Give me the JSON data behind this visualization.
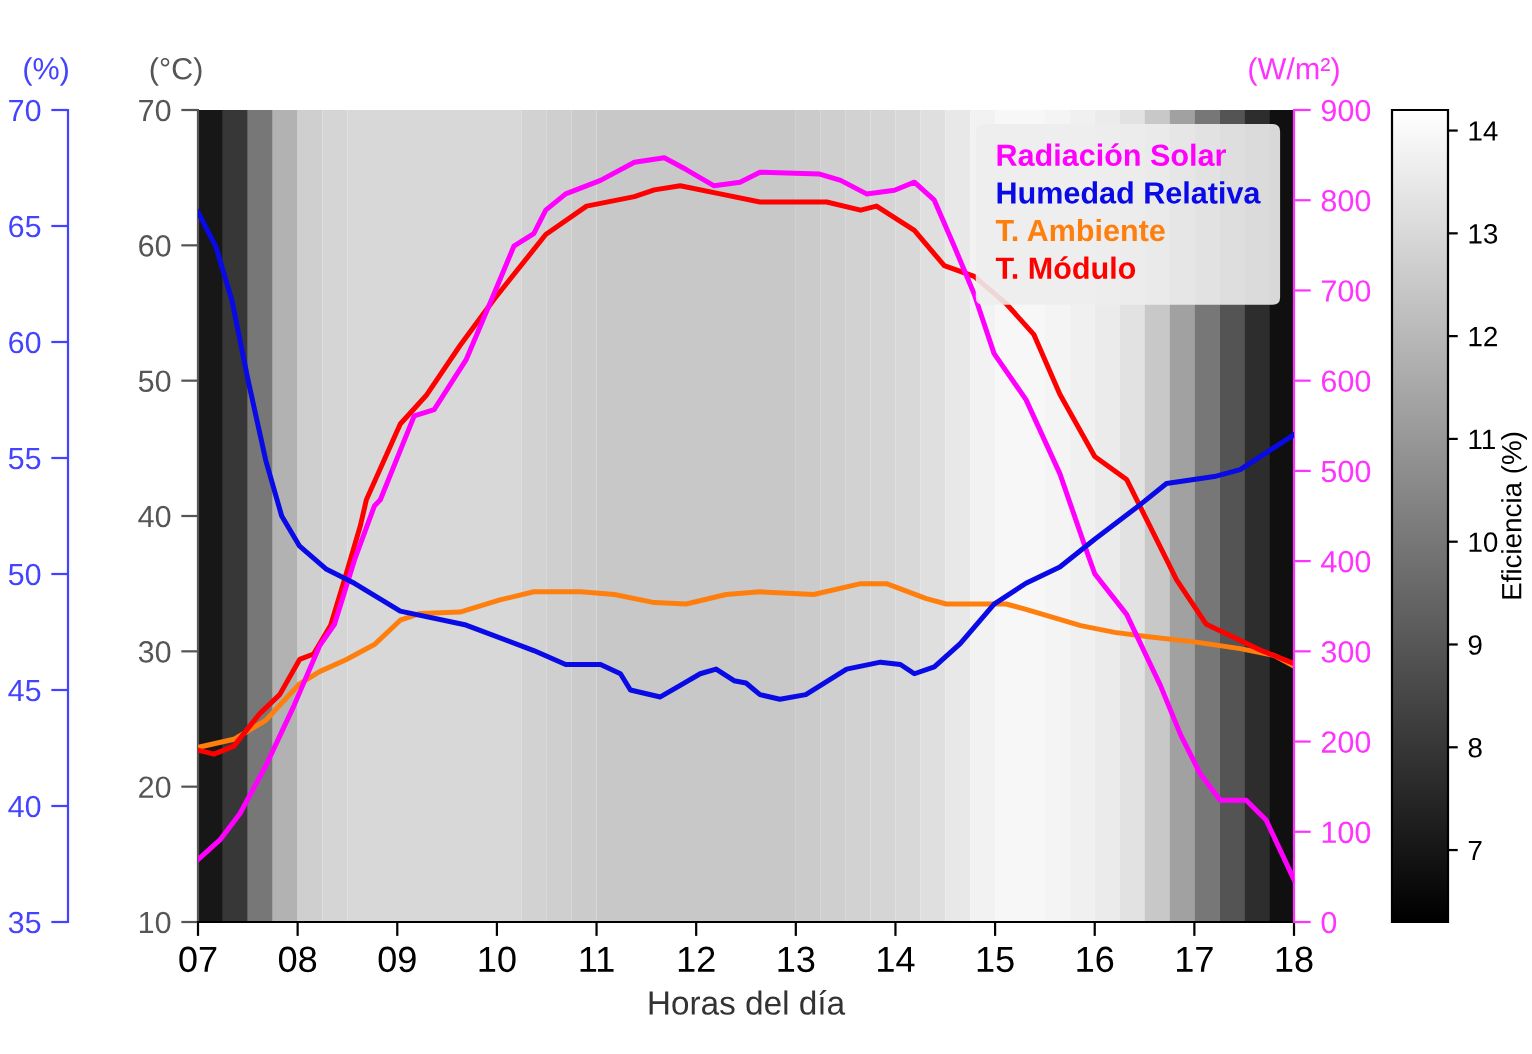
{
  "chart_data": {
    "type": "line",
    "xlabel": "Horas del día",
    "ylabel": "(°C)",
    "y2label": "(W/m²)",
    "y3label": "(%)",
    "clabel": "Eficiencia (%)",
    "xlim": [
      7,
      18
    ],
    "xticks": [
      {
        "value": 7,
        "label": "07"
      },
      {
        "value": 8,
        "label": "08"
      },
      {
        "value": 9,
        "label": "09"
      },
      10,
      11,
      12,
      13,
      14,
      15,
      16,
      17,
      18
    ],
    "ylim": [
      10,
      70
    ],
    "yticks": [
      10,
      20,
      30,
      40,
      50,
      60,
      70
    ],
    "y2lim": [
      0,
      900
    ],
    "y2ticks": [
      0,
      100,
      200,
      300,
      400,
      500,
      600,
      700,
      800,
      900
    ],
    "y3lim": [
      35,
      70
    ],
    "y3ticks": [
      35,
      40,
      45,
      50,
      55,
      60,
      65,
      70
    ],
    "clim": [
      6.3,
      14.2
    ],
    "cticks": [
      7,
      8,
      9,
      10,
      11,
      12,
      13,
      14
    ],
    "legend": "top right",
    "line_style": "solid",
    "marker": "none",
    "bands": [
      {
        "axis": "x",
        "from": 7.0,
        "to": 7.25,
        "color": "#171717"
      },
      {
        "axis": "x",
        "from": 7.25,
        "to": 7.5,
        "color": "#373737"
      },
      {
        "axis": "x",
        "from": 7.5,
        "to": 7.75,
        "color": "#777777"
      },
      {
        "axis": "x",
        "from": 7.75,
        "to": 8.0,
        "color": "#b2b2b2"
      },
      {
        "axis": "x",
        "from": 8.0,
        "to": 8.25,
        "color": "#cfcfcf"
      },
      {
        "axis": "x",
        "from": 8.25,
        "to": 8.5,
        "color": "#d5d5d5"
      },
      {
        "axis": "x",
        "from": 8.5,
        "to": 10.25,
        "color": "#d8d8d8"
      },
      {
        "axis": "x",
        "from": 10.25,
        "to": 10.5,
        "color": "#d2d2d2"
      },
      {
        "axis": "x",
        "from": 10.5,
        "to": 10.75,
        "color": "#cfcfcf"
      },
      {
        "axis": "x",
        "from": 10.75,
        "to": 11.0,
        "color": "#cbcbcb"
      },
      {
        "axis": "x",
        "from": 11.0,
        "to": 13.0,
        "color": "#c8c8c8"
      },
      {
        "axis": "x",
        "from": 13.0,
        "to": 13.25,
        "color": "#cbcbcb"
      },
      {
        "axis": "x",
        "from": 13.25,
        "to": 13.5,
        "color": "#cfcfcf"
      },
      {
        "axis": "x",
        "from": 13.5,
        "to": 13.75,
        "color": "#d2d2d2"
      },
      {
        "axis": "x",
        "from": 13.75,
        "to": 14.0,
        "color": "#d5d5d5"
      },
      {
        "axis": "x",
        "from": 14.0,
        "to": 14.25,
        "color": "#d8d8d8"
      },
      {
        "axis": "x",
        "from": 14.25,
        "to": 14.5,
        "color": "#dfdfdf"
      },
      {
        "axis": "x",
        "from": 14.5,
        "to": 14.75,
        "color": "#e8e8e8"
      },
      {
        "axis": "x",
        "from": 14.75,
        "to": 15.0,
        "color": "#f2f2f2"
      },
      {
        "axis": "x",
        "from": 15.0,
        "to": 15.5,
        "color": "#f7f7f7"
      },
      {
        "axis": "x",
        "from": 15.5,
        "to": 15.75,
        "color": "#f4f4f4"
      },
      {
        "axis": "x",
        "from": 15.75,
        "to": 16.0,
        "color": "#f0f0f0"
      },
      {
        "axis": "x",
        "from": 16.0,
        "to": 16.25,
        "color": "#ebebeb"
      },
      {
        "axis": "x",
        "from": 16.25,
        "to": 16.5,
        "color": "#e2e2e2"
      },
      {
        "axis": "x",
        "from": 16.5,
        "to": 16.75,
        "color": "#c8c8c8"
      },
      {
        "axis": "x",
        "from": 16.75,
        "to": 17.0,
        "color": "#a1a1a1"
      },
      {
        "axis": "x",
        "from": 17.0,
        "to": 17.25,
        "color": "#777777"
      },
      {
        "axis": "x",
        "from": 17.25,
        "to": 17.5,
        "color": "#545454"
      },
      {
        "axis": "x",
        "from": 17.5,
        "to": 17.75,
        "color": "#2d2d2d"
      },
      {
        "axis": "x",
        "from": 17.75,
        "to": 18.0,
        "color": "#101010"
      }
    ],
    "series": [
      {
        "name": "Radiación Solar",
        "color": "#ff00ff",
        "axis": "y2",
        "x": [
          7.0,
          7.22,
          7.42,
          7.68,
          7.96,
          8.22,
          8.37,
          8.57,
          8.77,
          8.83,
          9.17,
          9.37,
          9.69,
          9.97,
          10.17,
          10.37,
          10.49,
          10.69,
          11.04,
          11.38,
          11.68,
          11.9,
          12.18,
          12.44,
          12.64,
          13.24,
          13.45,
          13.71,
          13.99,
          14.19,
          14.39,
          14.59,
          14.79,
          14.99,
          15.31,
          15.65,
          15.9,
          16.0,
          16.32,
          16.66,
          16.86,
          17.06,
          17.26,
          17.52,
          17.72,
          18.0
        ],
        "values": [
          69,
          91,
          120,
          173,
          239,
          306,
          330,
          401,
          461,
          468,
          561,
          568,
          623,
          696,
          749,
          763,
          789,
          807,
          822,
          842,
          847,
          834,
          816,
          820,
          831,
          829,
          822,
          807,
          811,
          820,
          800,
          749,
          696,
          630,
          579,
          497,
          417,
          386,
          341,
          262,
          208,
          164,
          135,
          135,
          113,
          47
        ]
      },
      {
        "name": "Humedad Relativa",
        "color": "#0a0ae6",
        "axis": "y3",
        "x": [
          7.0,
          7.18,
          7.34,
          7.5,
          7.68,
          7.84,
          8.02,
          8.29,
          8.57,
          9.03,
          9.69,
          10.37,
          10.69,
          11.04,
          11.24,
          11.34,
          11.64,
          11.84,
          12.04,
          12.2,
          12.38,
          12.5,
          12.64,
          12.84,
          13.1,
          13.51,
          13.85,
          14.05,
          14.19,
          14.39,
          14.65,
          14.99,
          15.31,
          15.65,
          16.0,
          16.46,
          16.72,
          17.2,
          17.46,
          18.0
        ],
        "values": [
          65.6,
          64.1,
          61.8,
          58.4,
          54.9,
          52.5,
          51.2,
          50.2,
          49.6,
          48.4,
          47.8,
          46.7,
          46.1,
          46.1,
          45.7,
          45.0,
          44.7,
          45.2,
          45.7,
          45.9,
          45.4,
          45.3,
          44.8,
          44.6,
          44.8,
          45.9,
          46.2,
          46.1,
          45.7,
          46.0,
          47.0,
          48.7,
          49.6,
          50.3,
          51.5,
          53.0,
          53.9,
          54.2,
          54.5,
          56.0
        ]
      },
      {
        "name": "T. Ambiente",
        "color": "#ff7f0e",
        "axis": "y",
        "x": [
          7.0,
          7.36,
          7.68,
          8.02,
          8.22,
          8.49,
          8.77,
          9.03,
          9.23,
          9.63,
          10.03,
          10.37,
          10.84,
          11.18,
          11.58,
          11.9,
          12.3,
          12.64,
          13.18,
          13.65,
          13.91,
          14.31,
          14.51,
          15.11,
          15.31,
          15.86,
          16.2,
          16.52,
          17.0,
          17.46,
          17.8,
          18.0
        ],
        "values": [
          22.9,
          23.5,
          24.9,
          27.6,
          28.5,
          29.4,
          30.5,
          32.3,
          32.8,
          32.9,
          33.8,
          34.4,
          34.4,
          34.2,
          33.6,
          33.5,
          34.2,
          34.4,
          34.2,
          35.0,
          35.0,
          33.9,
          33.5,
          33.5,
          33.1,
          31.9,
          31.4,
          31.1,
          30.7,
          30.2,
          29.7,
          28.9
        ]
      },
      {
        "name": "T. Módulo",
        "color": "#ff0000",
        "axis": "y",
        "x": [
          7.0,
          7.16,
          7.36,
          7.62,
          7.82,
          8.02,
          8.16,
          8.33,
          8.47,
          8.63,
          8.69,
          9.03,
          9.29,
          9.63,
          9.97,
          10.49,
          10.9,
          11.38,
          11.58,
          11.84,
          12.24,
          12.64,
          13.31,
          13.65,
          13.81,
          14.19,
          14.49,
          14.79,
          15.11,
          15.39,
          15.65,
          16.0,
          16.32,
          16.72,
          16.82,
          17.12,
          17.32,
          17.66,
          18.0
        ],
        "values": [
          22.7,
          22.4,
          23.0,
          25.4,
          26.8,
          29.4,
          29.8,
          31.9,
          35.3,
          39.3,
          41.2,
          46.8,
          48.9,
          52.6,
          56.0,
          60.8,
          62.9,
          63.6,
          64.1,
          64.4,
          63.8,
          63.2,
          63.2,
          62.6,
          62.9,
          61.1,
          58.5,
          57.7,
          55.7,
          53.4,
          49.0,
          44.4,
          42.7,
          36.8,
          35.3,
          32.0,
          31.3,
          30.1,
          29.1
        ]
      }
    ]
  }
}
